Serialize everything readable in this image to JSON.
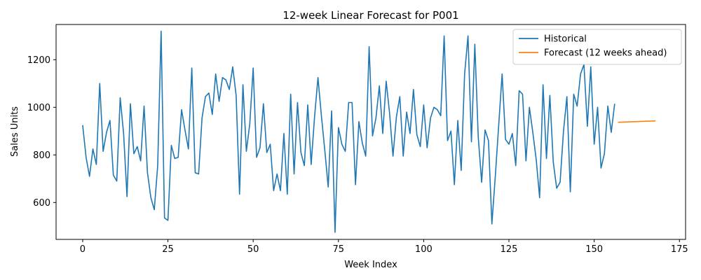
{
  "chart_data": {
    "type": "line",
    "title": "12-week Linear Forecast for P001",
    "xlabel": "Week Index",
    "ylabel": "Sales Units",
    "xlim": [
      -7.8,
      176.8
    ],
    "ylim": [
      445,
      1348
    ],
    "xticks": [
      0,
      25,
      50,
      75,
      100,
      125,
      150,
      175
    ],
    "yticks": [
      600,
      800,
      1000,
      1200
    ],
    "grid": false,
    "legend_position": "upper-right",
    "series": [
      {
        "name": "Historical",
        "color": "#1f77b4",
        "x_start": 0,
        "values": [
          925,
          790,
          710,
          825,
          760,
          1100,
          815,
          895,
          945,
          715,
          690,
          1040,
          890,
          625,
          1015,
          805,
          835,
          775,
          1005,
          725,
          620,
          570,
          755,
          1320,
          535,
          525,
          840,
          785,
          790,
          990,
          905,
          825,
          1165,
          725,
          720,
          955,
          1045,
          1060,
          970,
          1140,
          1025,
          1125,
          1115,
          1075,
          1170,
          1050,
          635,
          1095,
          815,
          930,
          1165,
          790,
          830,
          1015,
          810,
          845,
          650,
          720,
          650,
          890,
          635,
          1055,
          720,
          1020,
          810,
          755,
          1010,
          760,
          960,
          1125,
          965,
          820,
          665,
          985,
          475,
          915,
          845,
          815,
          1020,
          1020,
          675,
          940,
          850,
          795,
          1255,
          880,
          955,
          1090,
          890,
          1110,
          975,
          795,
          960,
          1045,
          795,
          980,
          890,
          1075,
          885,
          835,
          1010,
          830,
          955,
          1000,
          990,
          965,
          1300,
          860,
          900,
          675,
          945,
          735,
          1140,
          1300,
          855,
          1265,
          875,
          685,
          905,
          860,
          510,
          710,
          925,
          1140,
          865,
          845,
          890,
          755,
          1070,
          1055,
          775,
          1000,
          895,
          780,
          620,
          1095,
          785,
          1050,
          770,
          660,
          685,
          900,
          1045,
          645,
          1055,
          1005,
          1140,
          1180,
          920,
          1170,
          845,
          1000,
          745,
          805,
          1005,
          895,
          1015
        ]
      },
      {
        "name": "Forecast (12 weeks ahead)",
        "color": "#ff7f0e",
        "x": [
          157,
          168
        ],
        "values": [
          937,
          943
        ]
      }
    ]
  }
}
